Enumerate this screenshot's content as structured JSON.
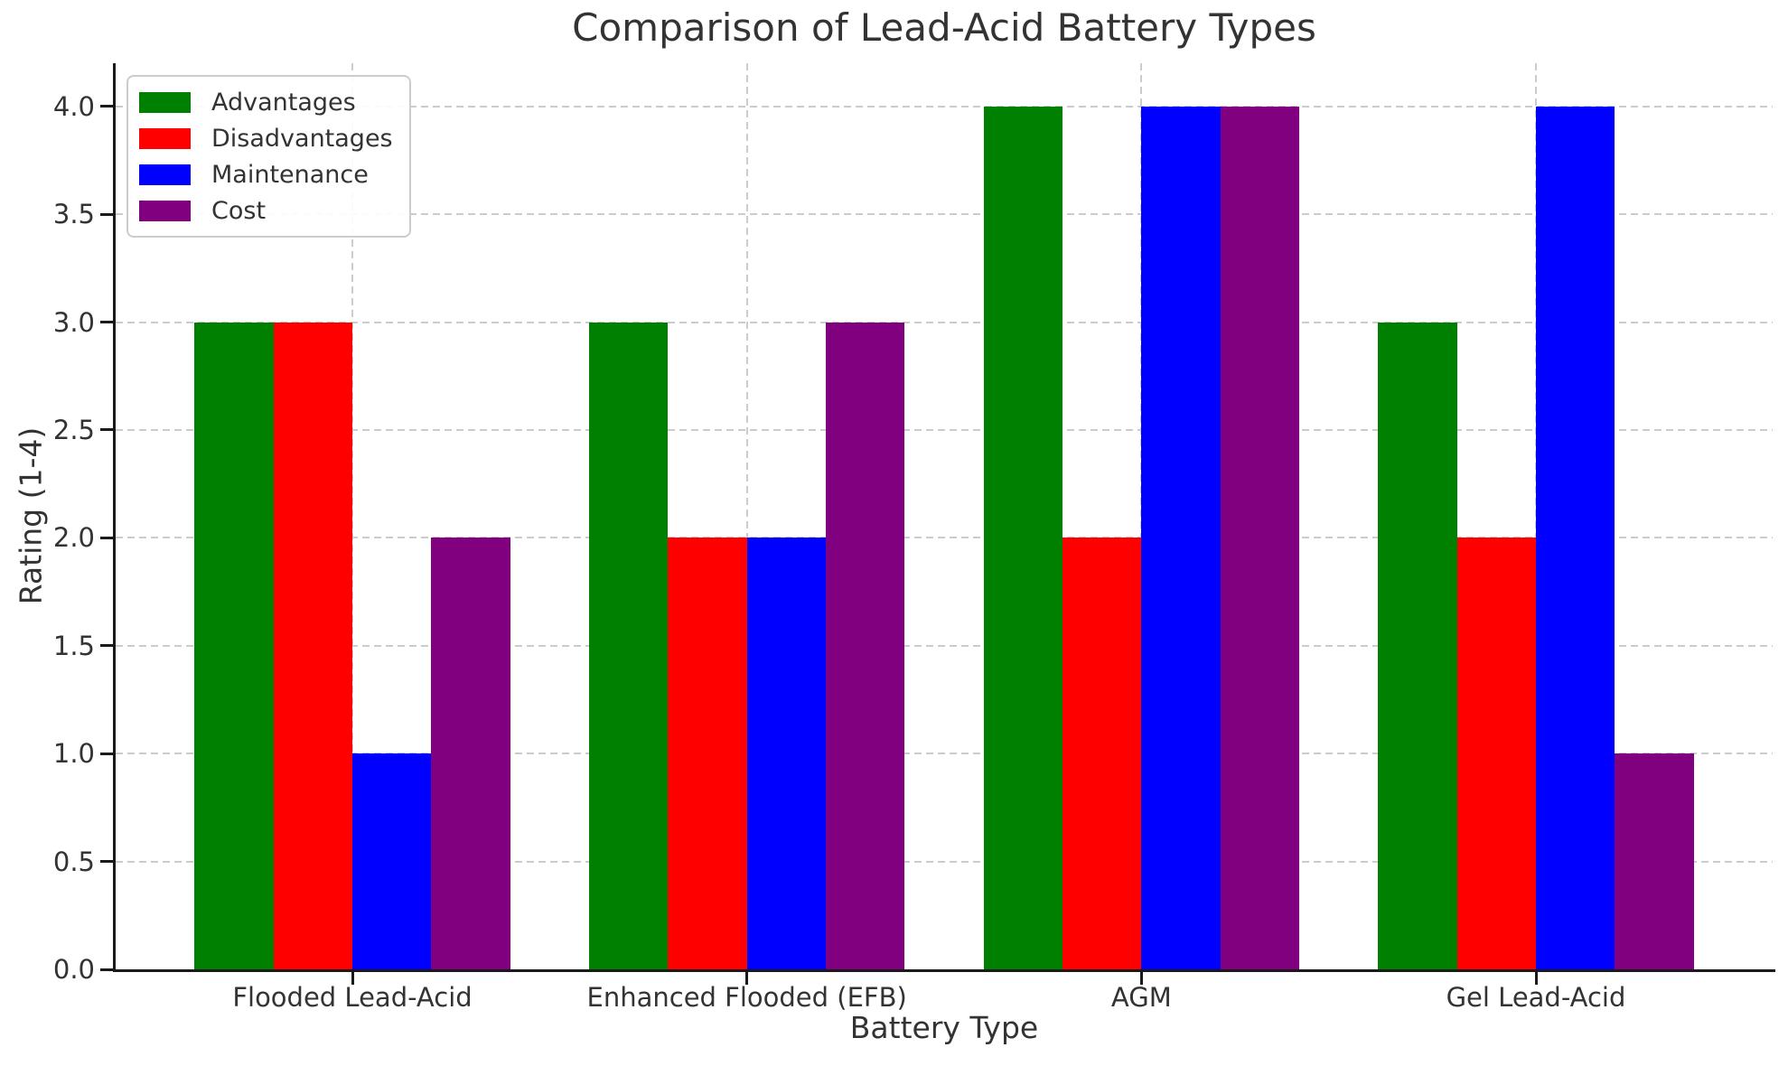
{
  "chart_data": {
    "type": "bar",
    "title": "Comparison of Lead-Acid Battery Types",
    "xlabel": "Battery Type",
    "ylabel": "Rating (1-4)",
    "categories": [
      "Flooded Lead-Acid",
      "Enhanced Flooded (EFB)",
      "AGM",
      "Gel Lead-Acid"
    ],
    "series": [
      {
        "name": "Advantages",
        "color": "#008000",
        "values": [
          3,
          3,
          4,
          3
        ]
      },
      {
        "name": "Disadvantages",
        "color": "#ff0000",
        "values": [
          3,
          2,
          2,
          2
        ]
      },
      {
        "name": "Maintenance",
        "color": "#0000ff",
        "values": [
          1,
          2,
          4,
          4
        ]
      },
      {
        "name": "Cost",
        "color": "#800080",
        "values": [
          2,
          3,
          4,
          1
        ]
      }
    ],
    "ylim": [
      0,
      4.2
    ],
    "xlim": [
      -0.6,
      3.6
    ],
    "yticks": [
      0.0,
      0.5,
      1.0,
      1.5,
      2.0,
      2.5,
      3.0,
      3.5,
      4.0
    ],
    "ytick_labels": [
      "0.0",
      "0.5",
      "1.0",
      "1.5",
      "2.0",
      "2.5",
      "3.0",
      "3.5",
      "4.0"
    ],
    "bar_width": 0.2,
    "group_offsets": [
      -0.3,
      -0.1,
      0.1,
      0.3
    ],
    "grid": "both-dashed",
    "legend_position": "upper-left"
  },
  "colors": {
    "text": "#333333",
    "grid": "#cccccc",
    "spine": "#1a1a1a",
    "background": "#ffffff"
  }
}
